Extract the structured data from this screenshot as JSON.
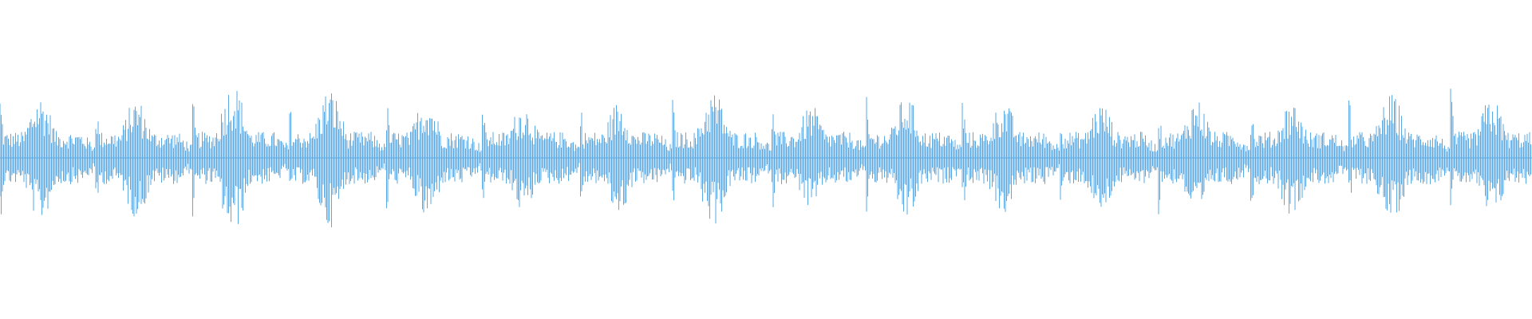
{
  "waveform": {
    "color": "#5aa9e2"
  }
}
